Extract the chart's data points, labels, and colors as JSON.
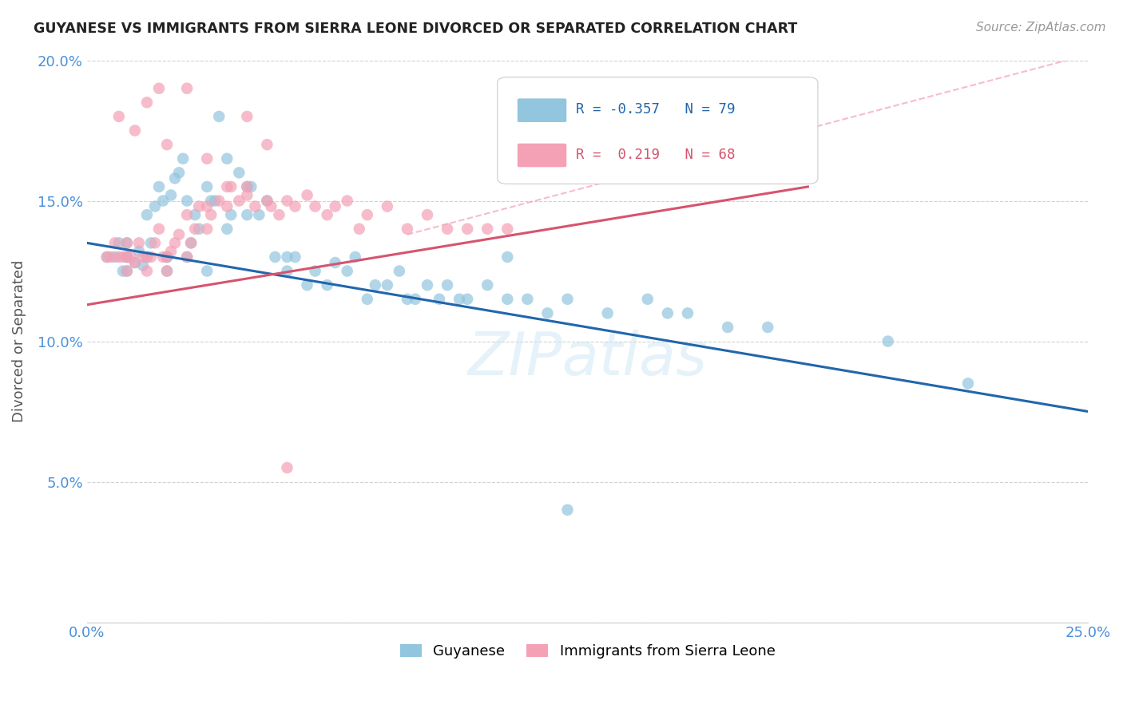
{
  "title": "GUYANESE VS IMMIGRANTS FROM SIERRA LEONE DIVORCED OR SEPARATED CORRELATION CHART",
  "source": "Source: ZipAtlas.com",
  "ylabel": "Divorced or Separated",
  "xlim": [
    0.0,
    0.25
  ],
  "ylim": [
    0.0,
    0.2
  ],
  "blue_color": "#92c5de",
  "pink_color": "#f4a0b5",
  "blue_line_color": "#2166ac",
  "pink_line_color": "#d6546e",
  "pink_dash_color": "#f4a0b5",
  "watermark": "ZIPatlas",
  "blue_trend": [
    0.0,
    0.135,
    0.25,
    0.075
  ],
  "pink_trend": [
    0.0,
    0.113,
    0.18,
    0.155
  ],
  "pink_dash": [
    0.08,
    0.138,
    0.25,
    0.202
  ],
  "blue_x": [
    0.005,
    0.007,
    0.008,
    0.009,
    0.01,
    0.01,
    0.01,
    0.01,
    0.012,
    0.013,
    0.014,
    0.015,
    0.015,
    0.016,
    0.017,
    0.018,
    0.019,
    0.02,
    0.02,
    0.02,
    0.021,
    0.022,
    0.023,
    0.024,
    0.025,
    0.025,
    0.026,
    0.027,
    0.028,
    0.03,
    0.03,
    0.031,
    0.032,
    0.033,
    0.035,
    0.035,
    0.036,
    0.038,
    0.04,
    0.04,
    0.041,
    0.043,
    0.045,
    0.047,
    0.05,
    0.05,
    0.052,
    0.055,
    0.057,
    0.06,
    0.062,
    0.065,
    0.067,
    0.07,
    0.072,
    0.075,
    0.078,
    0.08,
    0.082,
    0.085,
    0.088,
    0.09,
    0.093,
    0.095,
    0.1,
    0.105,
    0.11,
    0.115,
    0.12,
    0.13,
    0.14,
    0.15,
    0.16,
    0.17,
    0.2,
    0.22,
    0.145,
    0.105,
    0.12
  ],
  "blue_y": [
    0.13,
    0.13,
    0.135,
    0.125,
    0.13,
    0.125,
    0.13,
    0.135,
    0.128,
    0.132,
    0.127,
    0.13,
    0.145,
    0.135,
    0.148,
    0.155,
    0.15,
    0.13,
    0.125,
    0.13,
    0.152,
    0.158,
    0.16,
    0.165,
    0.13,
    0.15,
    0.135,
    0.145,
    0.14,
    0.125,
    0.155,
    0.15,
    0.15,
    0.18,
    0.14,
    0.165,
    0.145,
    0.16,
    0.145,
    0.155,
    0.155,
    0.145,
    0.15,
    0.13,
    0.13,
    0.125,
    0.13,
    0.12,
    0.125,
    0.12,
    0.128,
    0.125,
    0.13,
    0.115,
    0.12,
    0.12,
    0.125,
    0.115,
    0.115,
    0.12,
    0.115,
    0.12,
    0.115,
    0.115,
    0.12,
    0.115,
    0.115,
    0.11,
    0.115,
    0.11,
    0.115,
    0.11,
    0.105,
    0.105,
    0.1,
    0.085,
    0.11,
    0.13,
    0.04
  ],
  "pink_x": [
    0.005,
    0.006,
    0.007,
    0.008,
    0.009,
    0.01,
    0.01,
    0.01,
    0.011,
    0.012,
    0.013,
    0.014,
    0.015,
    0.015,
    0.016,
    0.017,
    0.018,
    0.019,
    0.02,
    0.02,
    0.021,
    0.022,
    0.023,
    0.025,
    0.025,
    0.026,
    0.027,
    0.028,
    0.03,
    0.03,
    0.031,
    0.033,
    0.035,
    0.036,
    0.038,
    0.04,
    0.04,
    0.042,
    0.045,
    0.046,
    0.048,
    0.05,
    0.052,
    0.055,
    0.057,
    0.06,
    0.062,
    0.065,
    0.068,
    0.07,
    0.075,
    0.08,
    0.085,
    0.09,
    0.095,
    0.1,
    0.105,
    0.025,
    0.018,
    0.015,
    0.012,
    0.008,
    0.02,
    0.03,
    0.035,
    0.04,
    0.045,
    0.05
  ],
  "pink_y": [
    0.13,
    0.13,
    0.135,
    0.13,
    0.13,
    0.13,
    0.125,
    0.135,
    0.13,
    0.128,
    0.135,
    0.13,
    0.13,
    0.125,
    0.13,
    0.135,
    0.14,
    0.13,
    0.13,
    0.125,
    0.132,
    0.135,
    0.138,
    0.13,
    0.145,
    0.135,
    0.14,
    0.148,
    0.14,
    0.148,
    0.145,
    0.15,
    0.148,
    0.155,
    0.15,
    0.155,
    0.152,
    0.148,
    0.15,
    0.148,
    0.145,
    0.15,
    0.148,
    0.152,
    0.148,
    0.145,
    0.148,
    0.15,
    0.14,
    0.145,
    0.148,
    0.14,
    0.145,
    0.14,
    0.14,
    0.14,
    0.14,
    0.19,
    0.19,
    0.185,
    0.175,
    0.18,
    0.17,
    0.165,
    0.155,
    0.18,
    0.17,
    0.055
  ]
}
